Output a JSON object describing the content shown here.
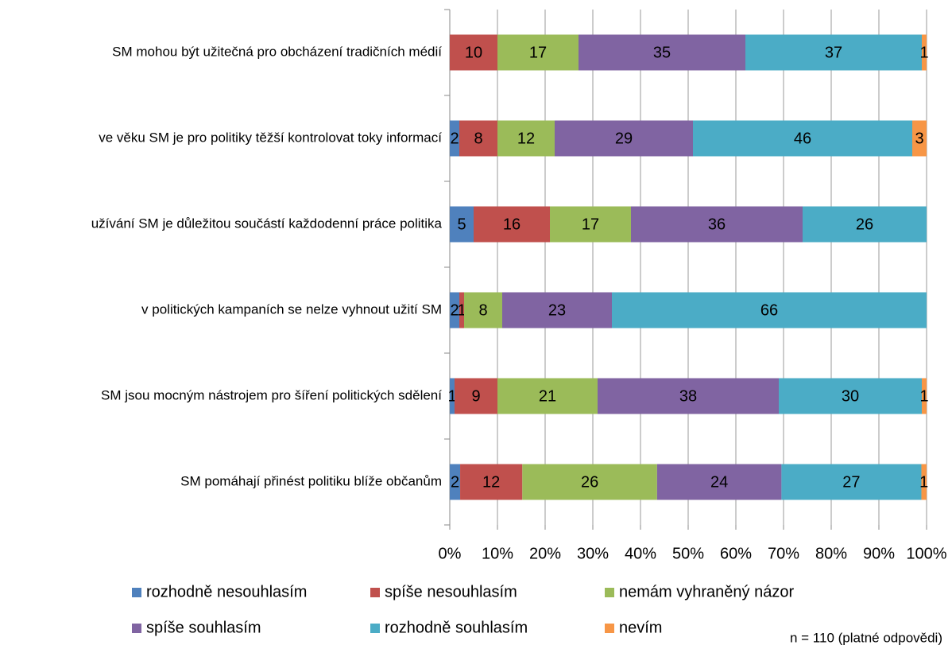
{
  "chart_data": {
    "type": "bar",
    "orientation": "horizontal",
    "stacked": "percent",
    "categories": [
      "SM mohou být užitečná pro obcházení tradičních médií",
      "ve věku SM je pro politiky těžší kontrolovat toky informací",
      "užívání SM je důležitou součástí každodenní práce politika",
      "v politických kampaních se nelze vyhnout užití SM",
      "SM jsou mocným nástrojem pro šíření politických sdělení",
      "SM pomáhají přinést politiku blíže občanům"
    ],
    "series": [
      {
        "name": "rozhodně nesouhlasím",
        "color": "#4f81bd",
        "values": [
          null,
          2,
          5,
          2,
          1,
          2
        ]
      },
      {
        "name": "spíše nesouhlasím",
        "color": "#c0504d",
        "values": [
          10,
          8,
          16,
          1,
          9,
          12
        ]
      },
      {
        "name": "nemám vyhraněný názor",
        "color": "#9bbb59",
        "values": [
          17,
          12,
          17,
          8,
          21,
          26
        ]
      },
      {
        "name": "spíše souhlasím",
        "color": "#8064a2",
        "values": [
          35,
          29,
          36,
          23,
          38,
          24
        ]
      },
      {
        "name": "rozhodně souhlasím",
        "color": "#4bacc6",
        "values": [
          37,
          46,
          26,
          66,
          30,
          27
        ]
      },
      {
        "name": "nevím",
        "color": "#f79646",
        "values": [
          1,
          3,
          null,
          null,
          1,
          1
        ]
      }
    ],
    "xlim": [
      0,
      100
    ],
    "xticks": [
      {
        "value": 0,
        "label": "0%"
      },
      {
        "value": 10,
        "label": "10%"
      },
      {
        "value": 20,
        "label": "20%"
      },
      {
        "value": 30,
        "label": "30%"
      },
      {
        "value": 40,
        "label": "40%"
      },
      {
        "value": 50,
        "label": "50%"
      },
      {
        "value": 60,
        "label": "60%"
      },
      {
        "value": 70,
        "label": "70%"
      },
      {
        "value": 80,
        "label": "80%"
      },
      {
        "value": 90,
        "label": "90%"
      },
      {
        "value": 100,
        "label": "100%"
      }
    ],
    "grid": true,
    "legend": "bottom",
    "annotation": "n = 110 (platné odpovědi)"
  }
}
